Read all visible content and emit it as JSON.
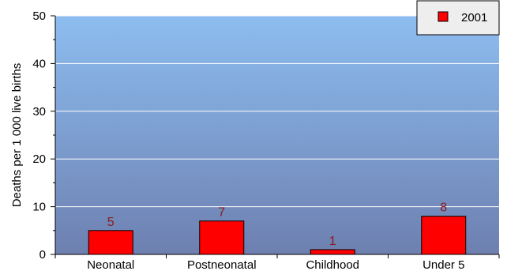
{
  "chart_data": {
    "type": "bar",
    "categories": [
      "Neonatal",
      "Postneonatal",
      "Childhood",
      "Under 5"
    ],
    "series": [
      {
        "name": "2001",
        "values": [
          5,
          7,
          1,
          8
        ],
        "data_labels": [
          "5",
          "7",
          "1",
          "8"
        ]
      }
    ],
    "ylabel": "Deaths per 1 000 live births",
    "xlabel": "",
    "ylim": [
      0,
      50
    ],
    "yticks": [
      0,
      10,
      20,
      30,
      40,
      50
    ],
    "ytick_labels": [
      "0",
      "10",
      "20",
      "30",
      "40",
      "50"
    ],
    "grid": true,
    "legend": {
      "position": "top-right",
      "entries": [
        "2001"
      ]
    },
    "colors": {
      "bar_fill": "#ff0000",
      "bar_stroke": "#000000",
      "data_label": "#8b1a1a",
      "plot_gradient_top": "#8dbdf0",
      "plot_gradient_bottom": "#6d80b0",
      "gridline": "#ffffff",
      "legend_bg": "#eeeeee"
    }
  }
}
